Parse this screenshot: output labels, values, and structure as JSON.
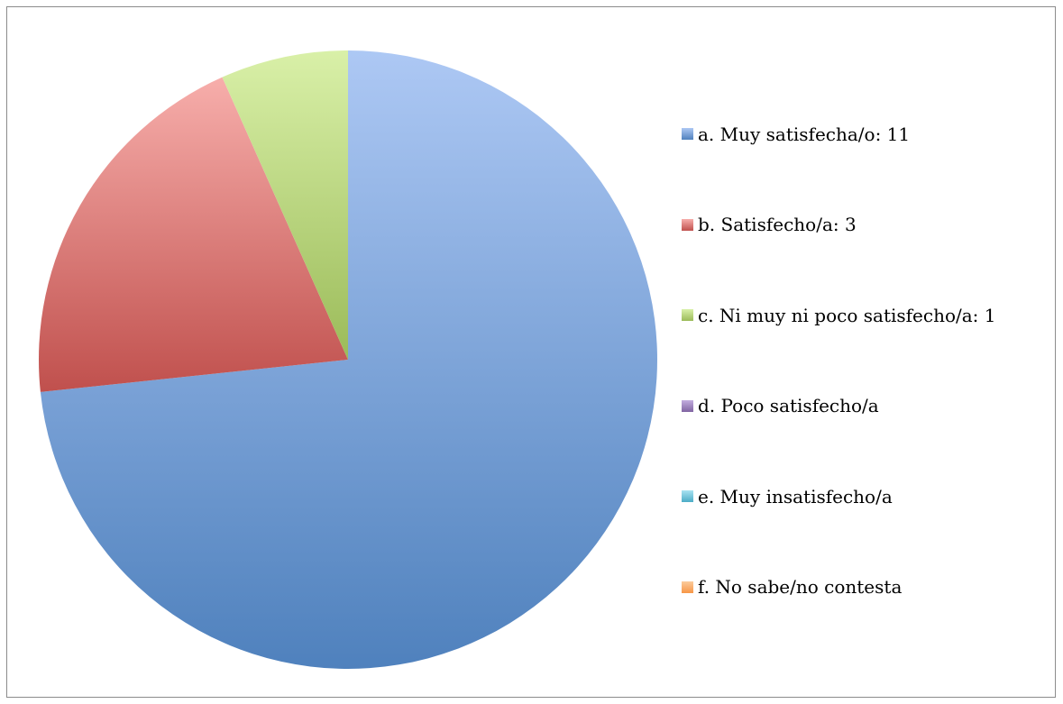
{
  "chart_data": {
    "type": "pie",
    "title": "",
    "categories": [
      "a. Muy satisfecha/o: 11",
      "b. Satisfecho/a: 3",
      "c. Ni muy ni poco satisfecho/a: 1",
      "d. Poco satisfecho/a",
      "e. Muy insatisfecho/a",
      "f. No sabe/no contesta"
    ],
    "values": [
      11,
      3,
      1,
      0,
      0,
      0
    ],
    "colors": [
      "#4f81bd",
      "#c0504d",
      "#9bbb59",
      "#8064a2",
      "#4bacc6",
      "#f79646"
    ],
    "light_colors": [
      "#adc8f4",
      "#f7aeab",
      "#d9f0a8",
      "#c3addf",
      "#a9e3f2",
      "#fbcb9c"
    ],
    "legend_position": "right",
    "start_angle": "12-o-clock",
    "direction": "clockwise"
  }
}
